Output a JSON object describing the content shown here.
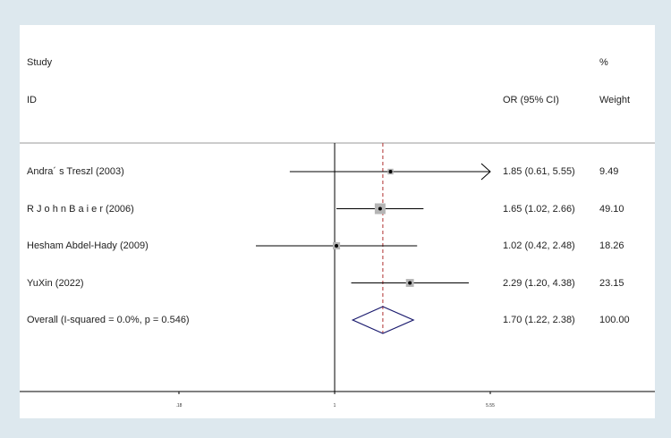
{
  "header": {
    "study_label": "Study",
    "id_label": "ID",
    "or_label": "OR (95% CI)",
    "pct_label": "%",
    "weight_label": "Weight"
  },
  "chart_data": {
    "type": "forest",
    "title": "",
    "xlabel": "",
    "ylabel": "",
    "x_scale": "log",
    "null_value": 1,
    "xlim": [
      0.18,
      5.55
    ],
    "x_ticks": [
      0.18,
      1,
      5.55
    ],
    "x_tick_labels": [
      ".18",
      "1",
      "5.55"
    ],
    "studies": [
      {
        "name": "Andra´ s Treszl  (2003)",
        "or": 1.85,
        "lower": 0.61,
        "upper": 5.55,
        "or_text": "1.85 (0.61, 5.55)",
        "weight": 9.49,
        "weight_text": "9.49",
        "arrow_right": true
      },
      {
        "name": "R J o h n B a i e r  (2006)",
        "or": 1.65,
        "lower": 1.02,
        "upper": 2.66,
        "or_text": "1.65 (1.02, 2.66)",
        "weight": 49.1,
        "weight_text": "49.10",
        "arrow_right": false
      },
      {
        "name": "Hesham Abdel-Hady  (2009)",
        "or": 1.02,
        "lower": 0.42,
        "upper": 2.48,
        "or_text": "1.02 (0.42, 2.48)",
        "weight": 18.26,
        "weight_text": "18.26",
        "arrow_right": false
      },
      {
        "name": "YuXin (2022)",
        "or": 2.29,
        "lower": 1.2,
        "upper": 4.38,
        "or_text": "2.29 (1.20, 4.38)",
        "weight": 23.15,
        "weight_text": "23.15",
        "arrow_right": false
      }
    ],
    "overall": {
      "label": "Overall  (I-squared = 0.0%, p = 0.546)",
      "or": 1.7,
      "lower": 1.22,
      "upper": 2.38,
      "or_text": "1.70 (1.22, 2.38)",
      "weight": 100.0,
      "weight_text": "100.00"
    },
    "colors": {
      "line": "#000000",
      "box": "#b5b5b5",
      "diamond": "#1a1a6e",
      "overall_line": "#b03030",
      "separator": "#999999"
    }
  }
}
